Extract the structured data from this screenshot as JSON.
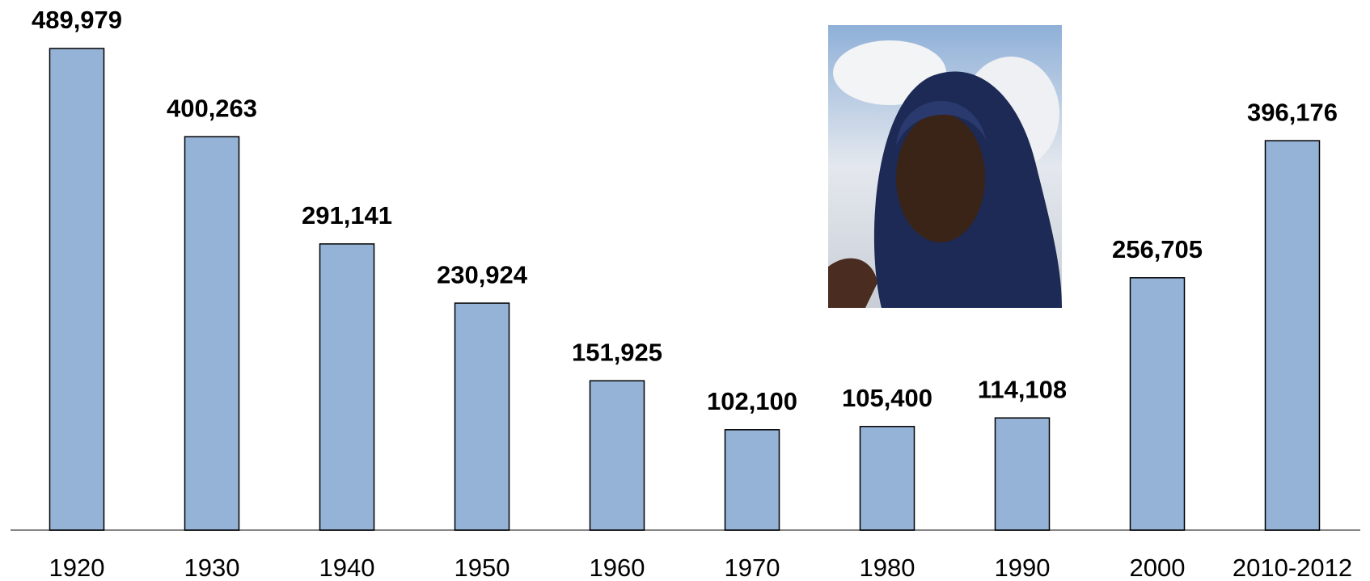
{
  "chart_data": {
    "type": "bar",
    "categories": [
      "1920",
      "1930",
      "1940",
      "1950",
      "1960",
      "1970",
      "1980",
      "1990",
      "2000",
      "2010-2012"
    ],
    "values": [
      489979,
      400263,
      291141,
      230924,
      151925,
      102100,
      105400,
      114108,
      256705,
      396176
    ],
    "value_labels": [
      "489,979",
      "400,263",
      "291,141",
      "230,924",
      "151,925",
      "102,100",
      "105,400",
      "114,108",
      "256,705",
      "396,176"
    ],
    "color": "#95b3d7"
  }
}
